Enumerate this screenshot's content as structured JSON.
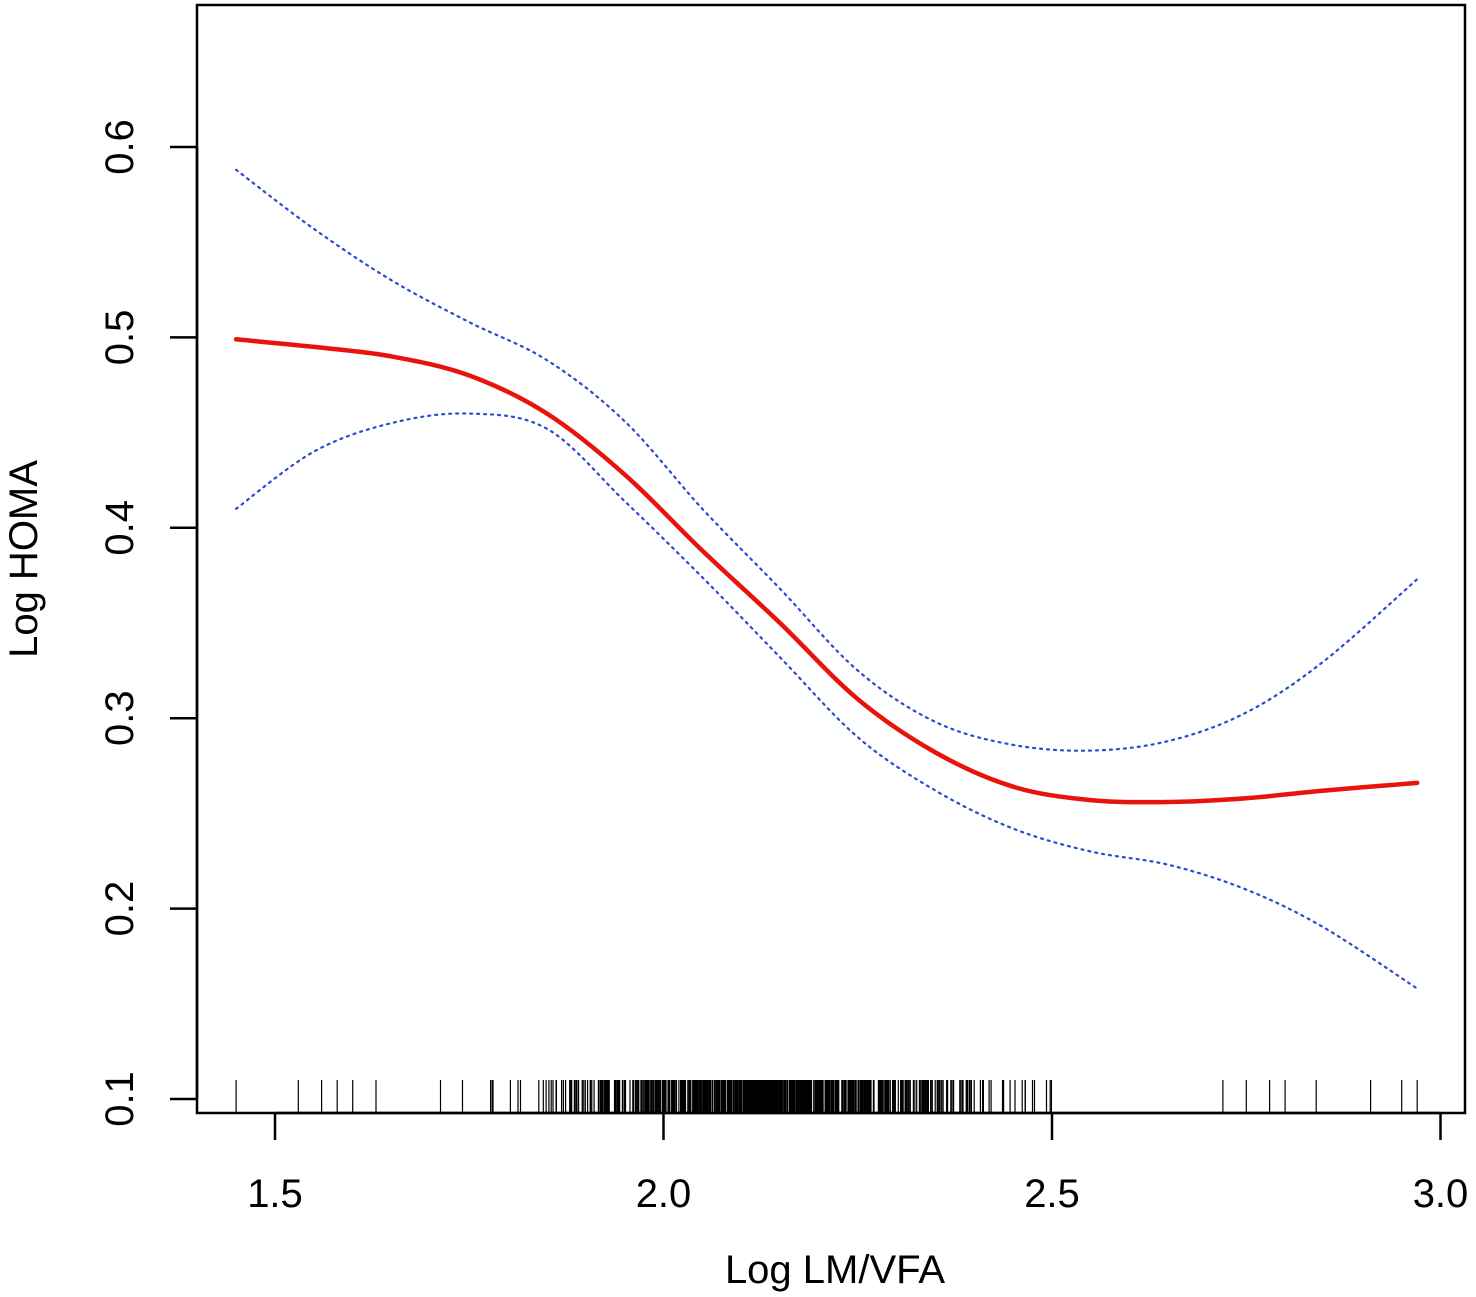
{
  "chart_data": {
    "type": "line",
    "xlabel": "Log LM/VFA",
    "ylabel": "Log HOMA",
    "xlim": [
      1.4,
      3.05
    ],
    "ylim": [
      0.09,
      0.68
    ],
    "xticks": [
      "1.5",
      "2.0",
      "2.5",
      "3.0"
    ],
    "yticks": [
      "0.1",
      "0.2",
      "0.3",
      "0.4",
      "0.5",
      "0.6"
    ],
    "grid": false,
    "legend": "none",
    "colors": {
      "fit": "#e8140c",
      "ci": "#2a4bd1",
      "axis": "#000000",
      "rug": "#000000"
    },
    "series": [
      {
        "role": "fit",
        "style": "solid",
        "x": [
          1.45,
          1.55,
          1.65,
          1.75,
          1.85,
          1.95,
          2.05,
          2.15,
          2.25,
          2.35,
          2.45,
          2.55,
          2.65,
          2.75,
          2.85,
          2.97
        ],
        "y": [
          0.499,
          0.495,
          0.49,
          0.48,
          0.46,
          0.428,
          0.388,
          0.35,
          0.31,
          0.282,
          0.264,
          0.257,
          0.256,
          0.258,
          0.262,
          0.266
        ]
      },
      {
        "role": "upper",
        "style": "dotted",
        "x": [
          1.45,
          1.55,
          1.65,
          1.75,
          1.85,
          1.95,
          2.05,
          2.15,
          2.25,
          2.35,
          2.45,
          2.55,
          2.65,
          2.75,
          2.85,
          2.97
        ],
        "y": [
          0.588,
          0.557,
          0.53,
          0.508,
          0.488,
          0.456,
          0.41,
          0.368,
          0.325,
          0.298,
          0.286,
          0.283,
          0.288,
          0.303,
          0.33,
          0.373
        ]
      },
      {
        "role": "lower",
        "style": "dotted",
        "x": [
          1.45,
          1.55,
          1.65,
          1.75,
          1.85,
          1.95,
          2.05,
          2.15,
          2.25,
          2.35,
          2.45,
          2.55,
          2.65,
          2.75,
          2.85,
          2.97
        ],
        "y": [
          0.41,
          0.44,
          0.455,
          0.46,
          0.452,
          0.414,
          0.374,
          0.332,
          0.29,
          0.262,
          0.242,
          0.23,
          0.223,
          0.21,
          0.19,
          0.158
        ]
      }
    ],
    "rug_range": [
      1.45,
      2.97
    ]
  }
}
